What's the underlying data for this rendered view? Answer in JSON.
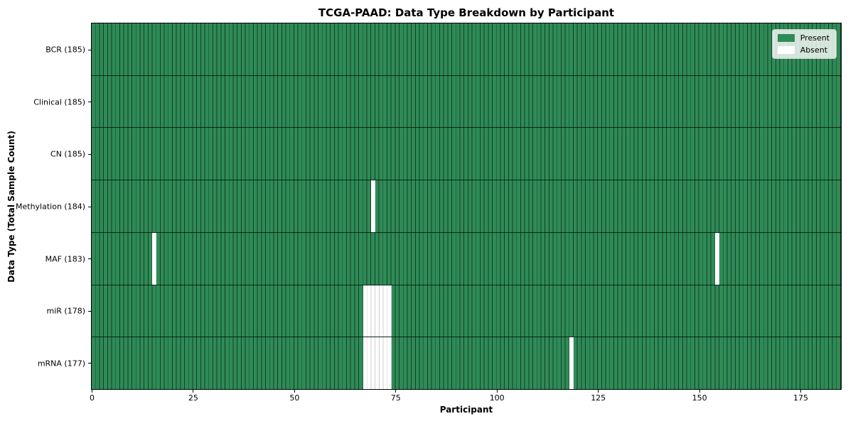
{
  "chart_data": {
    "type": "heatmap",
    "title": "TCGA-PAAD: Data Type Breakdown by Participant",
    "xlabel": "Participant",
    "ylabel": "Data Type (Total Sample Count)",
    "xlim": [
      0,
      185
    ],
    "n_participants": 185,
    "x_ticks": [
      0,
      25,
      50,
      75,
      100,
      125,
      150,
      175
    ],
    "grid": "cell-borders",
    "legend_position": "upper right",
    "legend": [
      {
        "label": "Present",
        "color": "#2e8b57"
      },
      {
        "label": "Absent",
        "color": "#ffffff"
      }
    ],
    "colors": {
      "present": "#2e8b57",
      "absent": "#ffffff",
      "present_cell_edge": "rgba(0,0,0,0.55)",
      "absent_cell_edge": "#cfcfcf",
      "row_divider": "rgba(0,0,0,0.7)",
      "plot_border": "#000000",
      "legend_background": "rgba(255,255,255,0.8)"
    },
    "rows": [
      {
        "label": "BCR (185)",
        "data_type": "BCR",
        "present_count": 185,
        "absent_participants": []
      },
      {
        "label": "Clinical (185)",
        "data_type": "Clinical",
        "present_count": 185,
        "absent_participants": []
      },
      {
        "label": "CN (185)",
        "data_type": "CN",
        "present_count": 185,
        "absent_participants": []
      },
      {
        "label": "Methylation (184)",
        "data_type": "Methylation",
        "present_count": 184,
        "absent_participants": [
          69
        ]
      },
      {
        "label": "MAF (183)",
        "data_type": "MAF",
        "present_count": 183,
        "absent_participants": [
          15,
          154
        ]
      },
      {
        "label": "miR (178)",
        "data_type": "miR",
        "present_count": 178,
        "absent_participants": [
          67,
          68,
          69,
          70,
          71,
          72,
          73
        ]
      },
      {
        "label": "mRNA (177)",
        "data_type": "mRNA",
        "present_count": 177,
        "absent_participants": [
          67,
          68,
          69,
          70,
          71,
          72,
          73,
          118
        ]
      }
    ]
  }
}
